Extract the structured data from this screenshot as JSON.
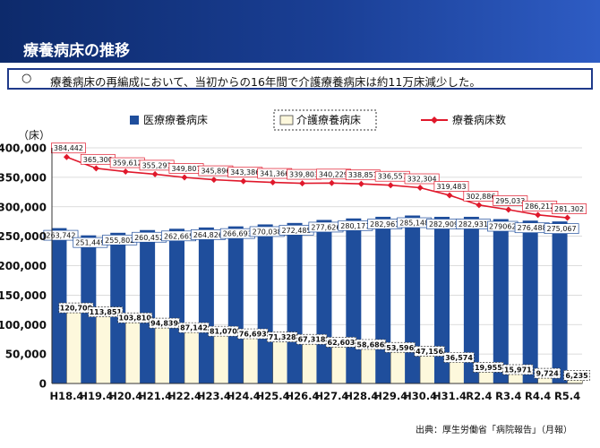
{
  "header": {
    "title": "療養病床の推移"
  },
  "summary": {
    "bullet": "○",
    "text": "療養病床の再編成において、当初からの16年間で介護療養病床は約11万床減少した。"
  },
  "legend": {
    "medical": "医療療養病床",
    "care": "介護療養病床",
    "total": "療養病床数"
  },
  "source": "出典：厚生労働省「病院報告」（月報）",
  "colors": {
    "medical": "#1f4e9c",
    "care": "#fdf8dc",
    "total": "#e0182b"
  },
  "chart_data": {
    "type": "bar",
    "ylabel": "（床）",
    "ylim": [
      0,
      400000
    ],
    "yticks": [
      "0",
      "50,000",
      "100,000",
      "150,000",
      "200,000",
      "250,000",
      "300,000",
      "350,000",
      "400,000"
    ],
    "categories": [
      "H18.4",
      "H19.4",
      "H20.4",
      "H21.4",
      "H22.4",
      "H23.4",
      "H24.4",
      "H25.4",
      "H26.4",
      "H27.4",
      "H28.4",
      "H29.4",
      "H30.4",
      "H31.4",
      "R2.4",
      "R3.4",
      "R4.4",
      "R5.4"
    ],
    "series": [
      {
        "name": "医療療養病床",
        "kind": "bar",
        "values": [
          263742,
          251449,
          255802,
          260452,
          262665,
          264826,
          266693,
          270038,
          272485,
          277626,
          280171,
          282961,
          285148,
          282909,
          282931,
          279062,
          276488,
          275067
        ],
        "labels": [
          "263,742",
          "251,449",
          "255,802",
          "260,452",
          "262,665",
          "264,826",
          "266,693",
          "270,038",
          "272,485",
          "277,626",
          "280,171",
          "282,961",
          "285,148",
          "282,909",
          "282,931",
          "279062",
          "276,488",
          "275,067"
        ]
      },
      {
        "name": "介護療養病床",
        "kind": "bar",
        "values": [
          120700,
          113851,
          103810,
          94839,
          87142,
          81070,
          76693,
          71328,
          67318,
          62603,
          58686,
          53596,
          47156,
          36574,
          19955,
          15971,
          9724,
          6235
        ],
        "labels": [
          "120,700",
          "113,851",
          "103,810",
          "94,839",
          "87,142",
          "81,070",
          "76,693",
          "71,328",
          "67,318",
          "62,603",
          "58,686",
          "53,596",
          "47,156",
          "36,574",
          "19,955",
          "15,971",
          "9,724",
          "6,235"
        ]
      },
      {
        "name": "療養病床数",
        "kind": "line",
        "values": [
          384442,
          365300,
          359612,
          355291,
          349807,
          345896,
          343386,
          341366,
          339803,
          340229,
          338857,
          336557,
          332304,
          319483,
          302886,
          295033,
          286212,
          281302
        ],
        "labels": [
          "384,442",
          "365,300",
          "359,612",
          "355,291",
          "349,807",
          "345,896",
          "343,386",
          "341,366",
          "339,803",
          "340,229",
          "338,857",
          "336,557",
          "332,304",
          "319,483",
          "302,886",
          "295,033",
          "286,212",
          "281,302"
        ]
      }
    ]
  }
}
